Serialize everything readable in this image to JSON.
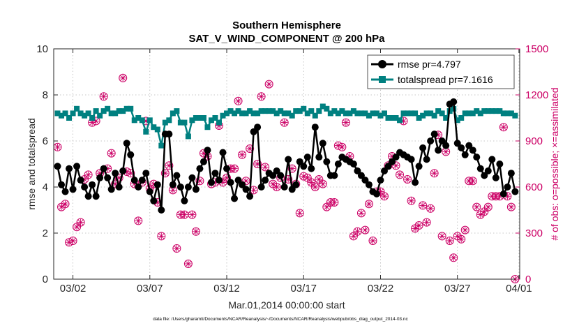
{
  "chart_data": {
    "type": "line",
    "title": "Southern Hemisphere",
    "subtitle": "SAT_V_WIND_COMPONENT @ 200 hPa",
    "xlabel": "Mar.01,2014 00:00:00 start",
    "ylabel_left": "rmse and totalspread",
    "ylabel_right": "# of obs: o=possible; ×=assimilated",
    "footnote": "data file: /Users/gharamti/Documents/NCAR/Reanalysis/~/Documents/NCAR/Reanalysis/webpub/obs_diag_output_2014-03.nc",
    "xlim": [
      0.75,
      31.05
    ],
    "ylim_left": [
      0,
      10
    ],
    "ylim_right": [
      0,
      1500
    ],
    "x_ticks": [
      {
        "value": 2,
        "label": "03/02"
      },
      {
        "value": 7,
        "label": "03/07"
      },
      {
        "value": 12,
        "label": "03/12"
      },
      {
        "value": 17,
        "label": "03/17"
      },
      {
        "value": 22,
        "label": "03/22"
      },
      {
        "value": 27,
        "label": "03/27"
      },
      {
        "value": 31,
        "label": "04/01"
      }
    ],
    "y_ticks_left": [
      {
        "value": 0,
        "label": "0"
      },
      {
        "value": 2,
        "label": "2"
      },
      {
        "value": 4,
        "label": "4"
      },
      {
        "value": 6,
        "label": "6"
      },
      {
        "value": 8,
        "label": "8"
      },
      {
        "value": 10,
        "label": "10"
      }
    ],
    "y_ticks_right": [
      {
        "value": 0,
        "label": "0"
      },
      {
        "value": 300,
        "label": "300"
      },
      {
        "value": 600,
        "label": "600"
      },
      {
        "value": 900,
        "label": "900"
      },
      {
        "value": 1200,
        "label": "1200"
      },
      {
        "value": 1500,
        "label": "1500"
      }
    ],
    "grid": "dotted",
    "legend_position": "top-right",
    "x_start": 1.0,
    "x_step": 0.25,
    "series": [
      {
        "name": "rmse pr=4.797",
        "axis": "left",
        "color": "#000000",
        "marker": "circle",
        "values": [
          4.9,
          4.1,
          3.8,
          4.8,
          3.9,
          4.9,
          4.3,
          4.0,
          3.6,
          4.1,
          3.6,
          4.4,
          4.8,
          4.4,
          3.9,
          4.6,
          4.0,
          4.7,
          5.9,
          5.4,
          4.3,
          4.0,
          4.3,
          4.6,
          3.8,
          3.4,
          4.1,
          3.0,
          6.3,
          6.3,
          4.1,
          4.5,
          4.0,
          3.4,
          4.0,
          4.4,
          3.9,
          4.8,
          5.1,
          5.6,
          4.2,
          4.6,
          4.3,
          5.5,
          4.8,
          4.2,
          3.5,
          4.3,
          4.1,
          3.9,
          3.6,
          6.4,
          6.6,
          4.0,
          4.3,
          4.6,
          4.5,
          4.7,
          4.5,
          4.0,
          5.2,
          3.9,
          4.1,
          5.1,
          4.9,
          5.3,
          4.8,
          6.6,
          5.3,
          5.9,
          5.1,
          4.5,
          4.5,
          5.0,
          5.3,
          5.2,
          5.1,
          5.0,
          4.7,
          4.5,
          4.3,
          4.1,
          3.8,
          3.7,
          4.3,
          4.7,
          4.9,
          5.1,
          5.3,
          5.5,
          5.4,
          5.3,
          5.2,
          4.2,
          4.9,
          5.7,
          5.2,
          6.0,
          6.3,
          5.6,
          6.0,
          5.8,
          7.6,
          7.7,
          5.9,
          5.7,
          5.4,
          5.8,
          5.6,
          5.3,
          4.8,
          4.5,
          4.7,
          5.2,
          4.4,
          5.0,
          3.7,
          4.0,
          4.6,
          3.8
        ]
      },
      {
        "name": "totalspread pr=7.1616",
        "axis": "left",
        "color": "#008080",
        "marker": "square",
        "values": [
          7.2,
          7.1,
          7.2,
          7.0,
          7.2,
          7.4,
          7.2,
          7.1,
          7.2,
          7.0,
          7.3,
          7.1,
          7.3,
          7.4,
          7.2,
          7.2,
          7.3,
          7.3,
          7.4,
          7.4,
          6.9,
          7.0,
          6.9,
          6.4,
          6.9,
          6.6,
          6.5,
          5.8,
          6.8,
          6.9,
          7.2,
          7.3,
          6.8,
          6.8,
          6.2,
          6.9,
          7.0,
          7.0,
          7.0,
          6.6,
          6.9,
          7.0,
          6.8,
          7.1,
          7.2,
          7.3,
          7.2,
          7.3,
          7.2,
          7.2,
          7.3,
          7.2,
          7.2,
          7.3,
          7.3,
          7.3,
          7.3,
          7.2,
          7.3,
          7.2,
          7.2,
          7.1,
          7.3,
          7.3,
          7.4,
          7.2,
          7.3,
          7.1,
          7.3,
          7.5,
          7.4,
          7.2,
          7.3,
          7.2,
          7.3,
          7.2,
          7.2,
          7.3,
          7.2,
          7.2,
          7.2,
          7.1,
          7.2,
          7.2,
          7.1,
          7.2,
          7.0,
          7.0,
          7.0,
          6.9,
          7.2,
          7.2,
          7.2,
          7.2,
          7.0,
          7.1,
          7.2,
          7.2,
          7.1,
          7.3,
          7.2,
          7.0,
          7.3,
          7.4,
          6.9,
          7.0,
          7.2,
          7.2,
          7.2,
          7.3,
          7.2,
          7.3,
          7.3,
          7.3,
          7.3,
          7.3,
          7.2,
          7.2,
          7.2,
          7.1
        ]
      },
      {
        "name": "# of obs possible",
        "axis": "right",
        "color": "#cc0066",
        "marker": "circle-open",
        "values": [
          860,
          470,
          490,
          240,
          250,
          340,
          370,
          650,
          680,
          1020,
          1030,
          690,
          1190,
          720,
          820,
          620,
          660,
          1310,
          700,
          690,
          620,
          380,
          630,
          1030,
          590,
          620,
          500,
          280,
          690,
          740,
          580,
          200,
          420,
          420,
          100,
          420,
          310,
          640,
          820,
          800,
          620,
          630,
          1000,
          630,
          660,
          720,
          720,
          1160,
          810,
          640,
          850,
          580,
          750,
          1190,
          730,
          1270,
          620,
          600,
          660,
          1020,
          650,
          720,
          620,
          430,
          670,
          660,
          630,
          600,
          650,
          620,
          470,
          500,
          500,
          870,
          860,
          1020,
          800,
          280,
          310,
          430,
          320,
          490,
          250,
          570,
          570,
          540,
          740,
          800,
          740,
          680,
          1030,
          650,
          510,
          330,
          350,
          480,
          370,
          460,
          690,
          940,
          280,
          830,
          250,
          140,
          280,
          260,
          320,
          640,
          640,
          470,
          420,
          440,
          470,
          540,
          540,
          540,
          990,
          540,
          470,
          0
        ]
      },
      {
        "name": "# of obs assimilated",
        "axis": "right",
        "color": "#cc0066",
        "marker": "x",
        "values": [
          860,
          470,
          490,
          240,
          250,
          340,
          370,
          650,
          680,
          1020,
          1030,
          690,
          1190,
          720,
          820,
          620,
          660,
          1310,
          700,
          690,
          620,
          380,
          630,
          1030,
          590,
          620,
          500,
          280,
          690,
          740,
          580,
          200,
          420,
          420,
          100,
          420,
          310,
          640,
          820,
          800,
          620,
          630,
          1000,
          630,
          660,
          720,
          720,
          1160,
          810,
          640,
          850,
          580,
          750,
          1190,
          730,
          1270,
          620,
          600,
          660,
          1020,
          650,
          720,
          620,
          430,
          670,
          660,
          630,
          600,
          650,
          620,
          470,
          500,
          500,
          870,
          860,
          1020,
          800,
          280,
          310,
          430,
          320,
          490,
          250,
          570,
          570,
          540,
          740,
          800,
          740,
          680,
          1030,
          650,
          510,
          330,
          350,
          480,
          370,
          460,
          690,
          940,
          280,
          830,
          250,
          140,
          280,
          260,
          320,
          640,
          640,
          470,
          420,
          440,
          470,
          540,
          540,
          540,
          990,
          540,
          470,
          0
        ]
      }
    ]
  }
}
